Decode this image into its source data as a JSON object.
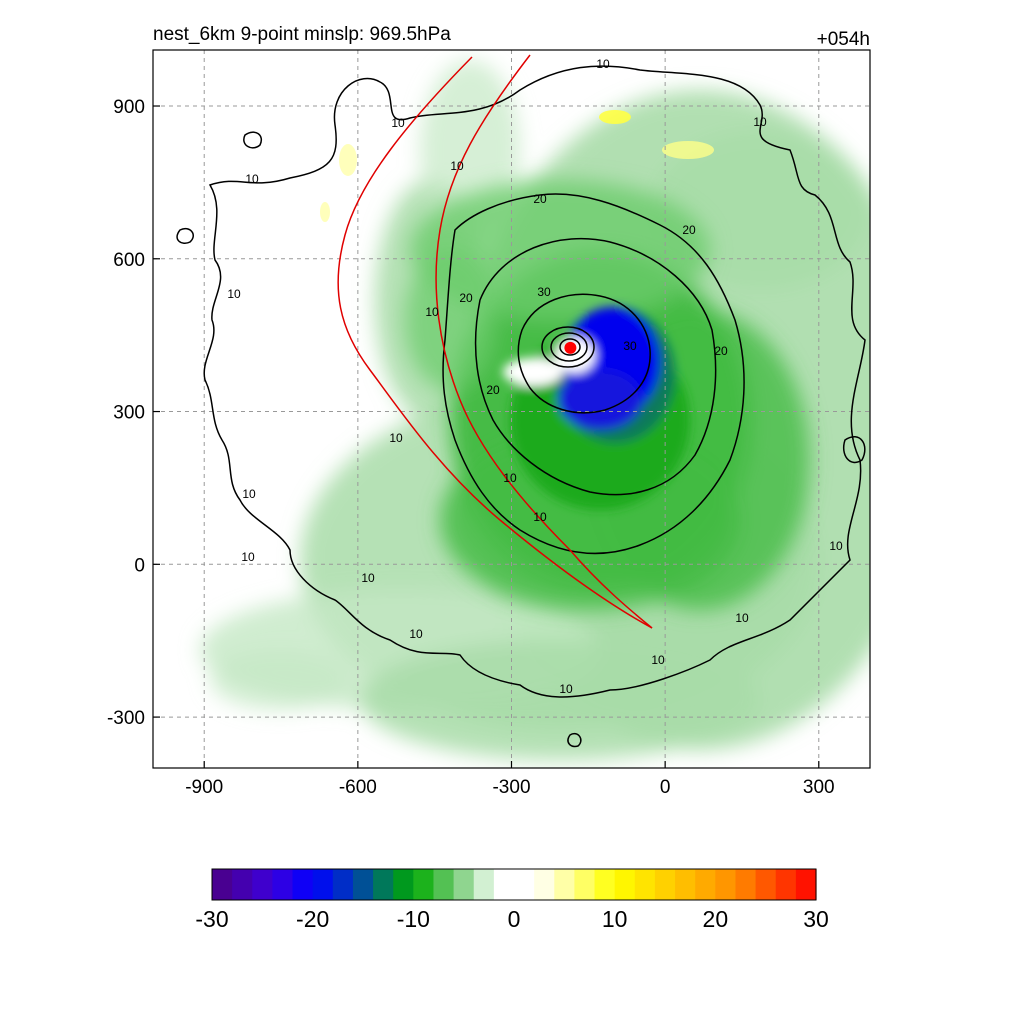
{
  "header": {
    "title": "nest_6km  9-point minslp: 969.5hPa",
    "forecast_hour": "+054h"
  },
  "chart_data": {
    "type": "heatmap",
    "x_ticks": [
      -900,
      -600,
      -300,
      0,
      300
    ],
    "y_ticks": [
      900,
      600,
      300,
      0,
      -300
    ],
    "xlim": [
      -1000,
      400
    ],
    "ylim": [
      -400,
      1010
    ],
    "grid": true,
    "storm_center": {
      "x": -185,
      "y": 425
    },
    "contour_levels": [
      10,
      20,
      30
    ],
    "colorbar": {
      "min": -30,
      "max": 30,
      "step": 2,
      "tick_labels": [
        "-30",
        "-20",
        "-10",
        "0",
        "10",
        "20",
        "30"
      ],
      "placement": "bottom"
    },
    "colors": {
      "strong_negative": "#0000ee",
      "negative": "#1aaa1a",
      "weak_negative": "#a8dca8",
      "positive": "#ffff00",
      "track": "#e00000",
      "contour": "#000000"
    }
  }
}
